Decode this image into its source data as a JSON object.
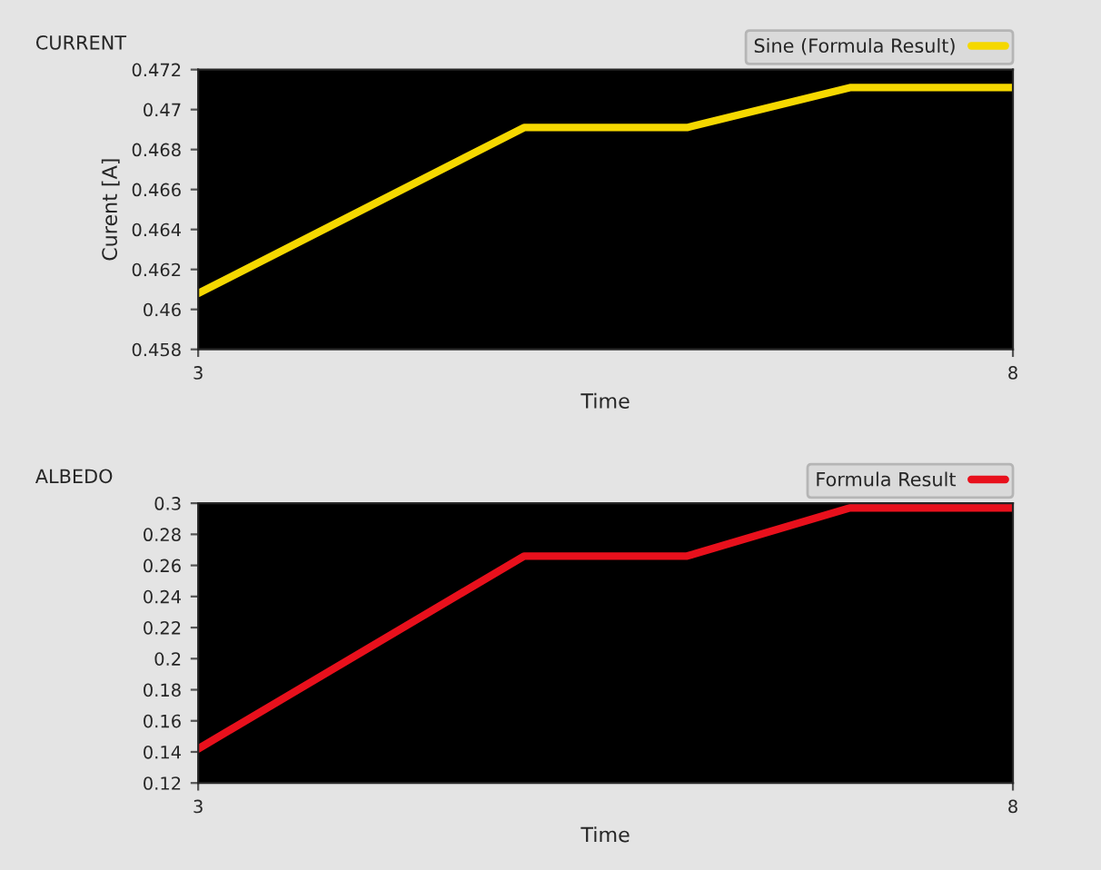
{
  "chart_data": [
    {
      "type": "line",
      "title": "CURRENT",
      "xlabel": "Time",
      "ylabel": "Curent [A]",
      "x": [
        3,
        5,
        6,
        7,
        8
      ],
      "series": [
        {
          "name": "Sine (Formula Result)",
          "color": "#f5d800",
          "values": [
            0.4608,
            0.4691,
            0.4691,
            0.4711,
            0.4711
          ]
        }
      ],
      "xlim": [
        3,
        8
      ],
      "xticks": [
        3,
        8
      ],
      "ylim": [
        0.458,
        0.472
      ],
      "yticks": [
        0.458,
        0.46,
        0.462,
        0.464,
        0.466,
        0.468,
        0.47,
        0.472
      ],
      "grid": false,
      "legend": "top right"
    },
    {
      "type": "line",
      "title": "ALBEDO",
      "xlabel": "Time",
      "x": [
        3,
        5,
        6,
        7,
        8
      ],
      "series": [
        {
          "name": "Formula Result",
          "color": "#e8101c",
          "values": [
            0.142,
            0.266,
            0.266,
            0.297,
            0.297
          ]
        }
      ],
      "xlim": [
        3,
        8
      ],
      "xticks": [
        3,
        8
      ],
      "ylim": [
        0.12,
        0.3
      ],
      "yticks": [
        0.12,
        0.14,
        0.16,
        0.18,
        0.2,
        0.22,
        0.24,
        0.26,
        0.28,
        0.3
      ],
      "grid": false,
      "legend": "top right"
    }
  ]
}
